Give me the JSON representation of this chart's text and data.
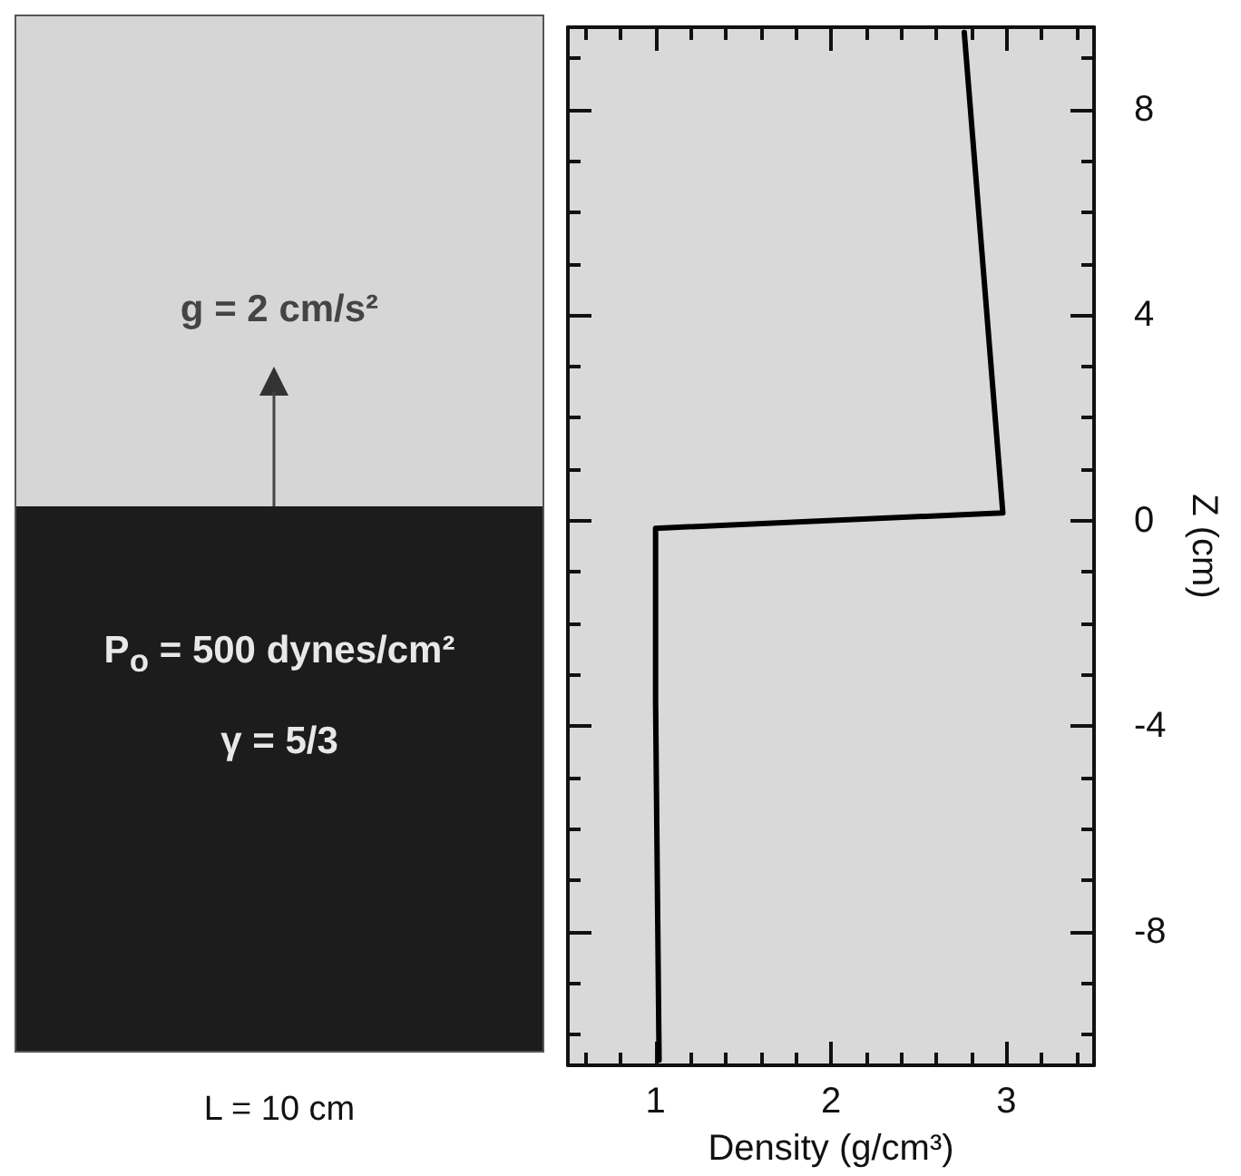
{
  "chart_data": [
    {
      "type": "other",
      "annotations": [
        "g = 2 cm/s²",
        "P$_{o}$ = 500 dynes/cm²",
        "γ = 5/3",
        "L = 10 cm"
      ]
    },
    {
      "type": "line",
      "xlabel": "Density (g/cm³)",
      "ylabel": "Z (cm)",
      "xlim": [
        0.5,
        3.5
      ],
      "ylim": [
        -10.6,
        9.6
      ],
      "xticks": [
        {
          "value": 0.6,
          "label": null
        },
        {
          "value": 0.8,
          "label": null
        },
        1,
        {
          "value": 1.2,
          "label": null
        },
        {
          "value": 1.4,
          "label": null
        },
        {
          "value": 1.6,
          "label": null
        },
        {
          "value": 1.8,
          "label": null
        },
        2,
        {
          "value": 2.2,
          "label": null
        },
        {
          "value": 2.4,
          "label": null
        },
        {
          "value": 2.6,
          "label": null
        },
        {
          "value": 2.8,
          "label": null
        },
        3,
        {
          "value": 3.2,
          "label": null
        },
        {
          "value": 3.4,
          "label": null
        }
      ],
      "yticks": [
        {
          "value": -10,
          "label": null
        },
        {
          "value": -9,
          "label": null
        },
        -8,
        {
          "value": -7,
          "label": null
        },
        {
          "value": -6,
          "label": null
        },
        {
          "value": -5,
          "label": null
        },
        -4,
        {
          "value": -3,
          "label": null
        },
        {
          "value": -2,
          "label": null
        },
        {
          "value": -1,
          "label": null
        },
        0,
        {
          "value": 1,
          "label": null
        },
        {
          "value": 2,
          "label": null
        },
        {
          "value": 3,
          "label": null
        },
        4,
        {
          "value": 5,
          "label": null
        },
        {
          "value": 6,
          "label": null
        },
        {
          "value": 7,
          "label": null
        },
        8,
        {
          "value": 9,
          "label": null
        }
      ],
      "series": [
        {
          "color": "#000000",
          "x": [
            2.76,
            2.98,
            1.0,
            1.0,
            1.02
          ],
          "values": [
            9.5,
            0.15,
            -0.15,
            -3.5,
            -10.5
          ]
        }
      ],
      "grid": false,
      "marker": "none",
      "line_style": "solid"
    }
  ]
}
